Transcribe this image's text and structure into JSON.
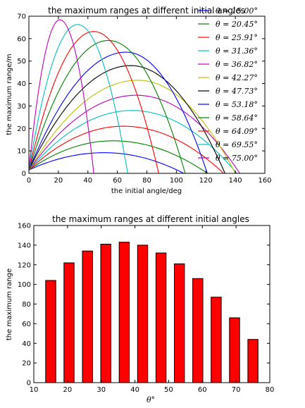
{
  "chart_data": [
    {
      "type": "line",
      "title": "the maximum ranges at different initial angles",
      "xlabel": "the initial angle/deg",
      "ylabel": "the maximum range/m",
      "xlim": [
        0,
        160
      ],
      "ylim": [
        0,
        70
      ],
      "xticks": [
        "0",
        "20",
        "40",
        "60",
        "80",
        "100",
        "120",
        "140",
        "160"
      ],
      "yticks": [
        "0",
        "10",
        "20",
        "30",
        "40",
        "50",
        "60",
        "70"
      ],
      "grid": false,
      "legend_position": "top-right",
      "series": [
        {
          "name": "θ = 15.00°",
          "color": "#0000ff",
          "peak": [
            51,
            9.2
          ],
          "range": 105
        },
        {
          "name": "θ = 20.45°",
          "color": "#008000",
          "peak": [
            57,
            14.5
          ],
          "range": 121
        },
        {
          "name": "θ = 25.91°",
          "color": "#ff0000",
          "peak": [
            64,
            21
          ],
          "range": 132
        },
        {
          "name": "θ = 31.36°",
          "color": "#00bfbf",
          "peak": [
            70,
            28
          ],
          "range": 141
        },
        {
          "name": "θ = 36.82°",
          "color": "#bf00bf",
          "peak": [
            73,
            34.8
          ],
          "range": 143
        },
        {
          "name": "θ = 42.27°",
          "color": "#bfbf00",
          "peak": [
            74,
            41.5
          ],
          "range": 140
        },
        {
          "name": "θ = 47.73°",
          "color": "#000000",
          "peak": [
            69,
            48
          ],
          "range": 133
        },
        {
          "name": "θ = 53.18°",
          "color": "#0000ff",
          "peak": [
            66,
            54
          ],
          "range": 121
        },
        {
          "name": "θ = 58.64°",
          "color": "#008000",
          "peak": [
            54,
            59.2
          ],
          "range": 106
        },
        {
          "name": "θ = 64.09°",
          "color": "#ff0000",
          "peak": [
            44,
            63.2
          ],
          "range": 88
        },
        {
          "name": "θ = 69.55°",
          "color": "#00bfbf",
          "peak": [
            33,
            66.3
          ],
          "range": 67
        },
        {
          "name": "θ = 75.00°",
          "color": "#bf00bf",
          "peak": [
            21,
            68.4
          ],
          "range": 44
        }
      ]
    },
    {
      "type": "bar",
      "title": "the maximum ranges at different initial angles",
      "xlabel": "θ°",
      "ylabel": "the maximum range",
      "xlim": [
        10,
        80
      ],
      "ylim": [
        0,
        160
      ],
      "xticks": [
        "10",
        "20",
        "30",
        "40",
        "50",
        "60",
        "70",
        "80"
      ],
      "yticks": [
        "0",
        "20",
        "40",
        "60",
        "80",
        "100",
        "120",
        "140",
        "160"
      ],
      "bar_color": "#ff0000",
      "bar_edge_color": "#000000",
      "bar_width": 3,
      "x": [
        15.0,
        20.45,
        25.91,
        31.36,
        36.82,
        42.27,
        47.73,
        53.18,
        58.64,
        64.09,
        69.55,
        75.0
      ],
      "values": [
        104,
        122,
        134,
        141,
        143,
        140,
        132,
        121,
        106,
        87,
        66,
        44
      ]
    }
  ]
}
